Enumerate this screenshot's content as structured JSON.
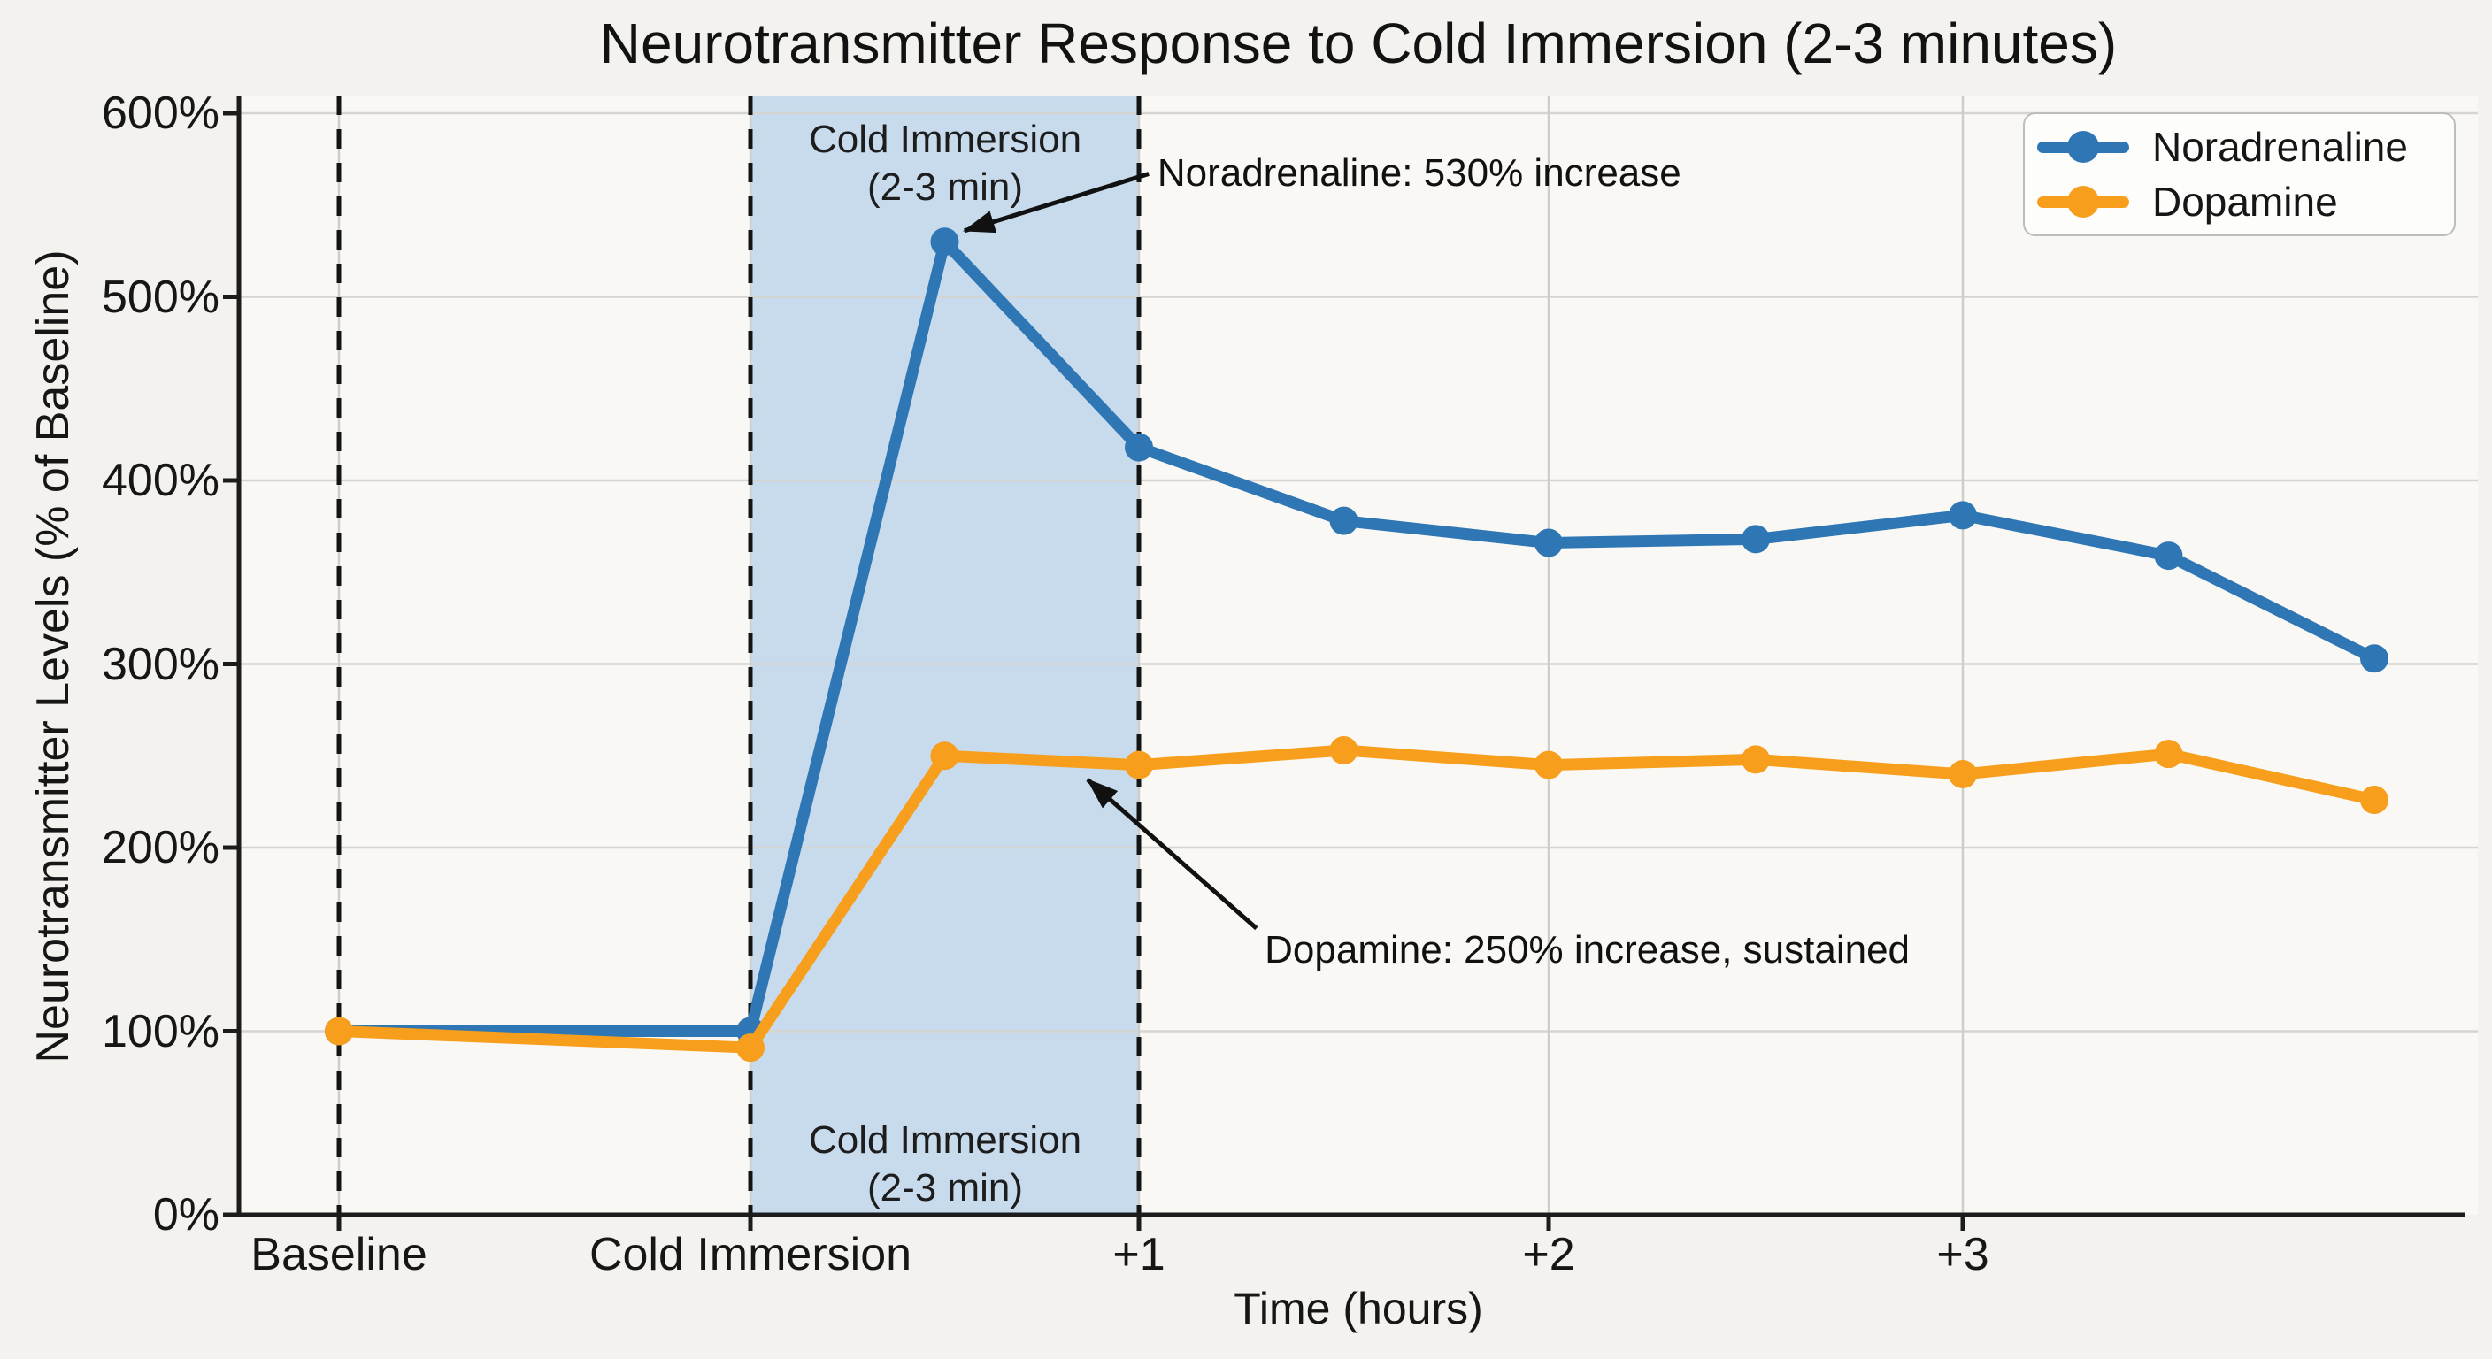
{
  "chart_data": {
    "type": "line",
    "title": "Neurotransmitter Response to Cold Immersion (2-3 minutes)",
    "xlabel": "Time (hours)",
    "ylabel": "Neurotransmitter Levels (% of Baseline)",
    "ylim": [
      0,
      600
    ],
    "ytick_labels": [
      "0%",
      "100%",
      "200%",
      "300%",
      "400%",
      "500%",
      "600%"
    ],
    "ytick_values": [
      0,
      100,
      200,
      300,
      400,
      500,
      600
    ],
    "grid": true,
    "legend_position": "top-right",
    "xticks": [
      {
        "h": -1,
        "label": "Baseline"
      },
      {
        "h": 0,
        "label": "Cold Immersion"
      },
      {
        "h": 1,
        "label": "+1"
      },
      {
        "h": 2,
        "label": "+2"
      },
      {
        "h": 3,
        "label": "+3"
      }
    ],
    "x_hours": [
      -1,
      0,
      0.5,
      1,
      1.5,
      2,
      2.5,
      3,
      3.5,
      4
    ],
    "series": [
      {
        "name": "Noradrenaline",
        "color": "#2e76b4",
        "values": [
          100,
          100,
          530,
          418,
          378,
          366,
          368,
          381,
          359,
          303
        ]
      },
      {
        "name": "Dopamine",
        "color": "#f79e1c",
        "values": [
          100,
          91,
          250,
          245,
          253,
          245,
          248,
          240,
          251,
          226
        ]
      }
    ],
    "shaded_band": {
      "from_h": 0,
      "to_h": 1,
      "color": "#c8dbec",
      "label_line1": "Cold Immersion",
      "label_line2": "(2-3 min)"
    },
    "event_lines_h": [
      -1,
      0,
      1
    ],
    "annotations": [
      {
        "id": "noradrenaline-peak",
        "text": "Noradrenaline: 530% increase",
        "text_h": 1.045,
        "text_pct": 567,
        "tail_h": 1.024,
        "tail_pct": 567,
        "tip_h": 0.551,
        "tip_pct": 536
      },
      {
        "id": "dopamine-sustained",
        "text": "Dopamine: 250% increase, sustained",
        "text_h": 1.307,
        "text_pct": 144,
        "tail_h": 1.287,
        "tail_pct": 156,
        "tip_h": 0.868,
        "tip_pct": 237
      }
    ],
    "legend": {
      "entries": [
        "Noradrenaline",
        "Dopamine"
      ]
    }
  },
  "colors": {
    "page_bg": "#f4f2ee",
    "plot_bg": "#f9f8f5",
    "grid": "#d6d4d1",
    "vgrid": "#cfcdca",
    "axis": "#1c1c1c",
    "dashed": "#141414",
    "text": "#161616",
    "noradrenaline": "#2e76b4",
    "dopamine": "#f79e1c",
    "band": "#c8dbec",
    "legend_border": "#bdbdbd",
    "legend_bg": "#fdfdfc"
  }
}
